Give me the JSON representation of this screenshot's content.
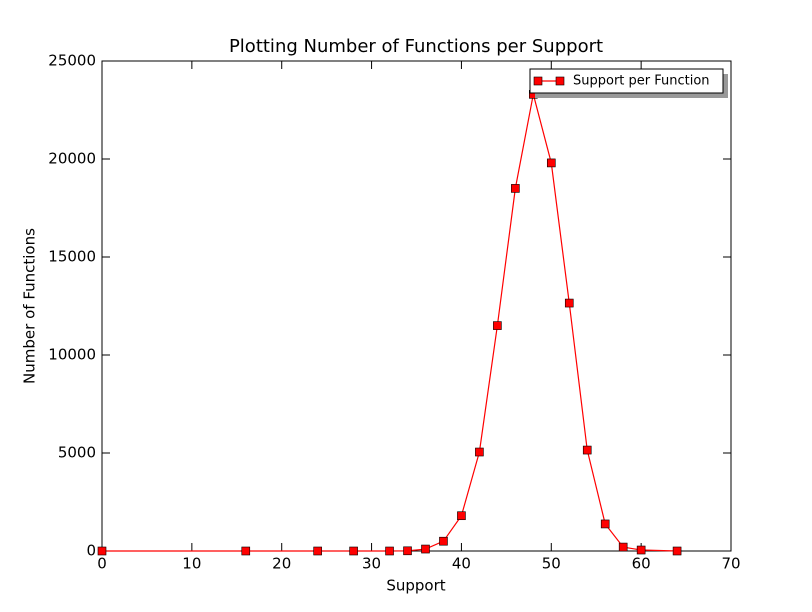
{
  "chart_data": {
    "type": "line",
    "title": "Plotting Number of Functions per Support",
    "x_label": "Support",
    "y_label": "Number of Functions",
    "x": [
      0,
      16,
      24,
      28,
      32,
      34,
      36,
      38,
      40,
      42,
      44,
      46,
      48,
      50,
      52,
      54,
      56,
      58,
      60,
      64
    ],
    "series": [
      {
        "name": "Support per Function",
        "color": "#ff0000",
        "values": [
          0,
          0,
          0,
          0,
          0,
          10,
          100,
          500,
          1800,
          5050,
          11500,
          18500,
          23300,
          19800,
          12650,
          5150,
          1380,
          200,
          50,
          0
        ]
      }
    ],
    "xlim": [
      0,
      70
    ],
    "xticks": [
      0,
      10,
      20,
      30,
      40,
      50,
      60,
      70
    ],
    "ylim": [
      0,
      25000
    ],
    "yticks": [
      0,
      5000,
      10000,
      15000,
      20000,
      25000
    ],
    "legend_position": "upper right",
    "grid": false
  }
}
